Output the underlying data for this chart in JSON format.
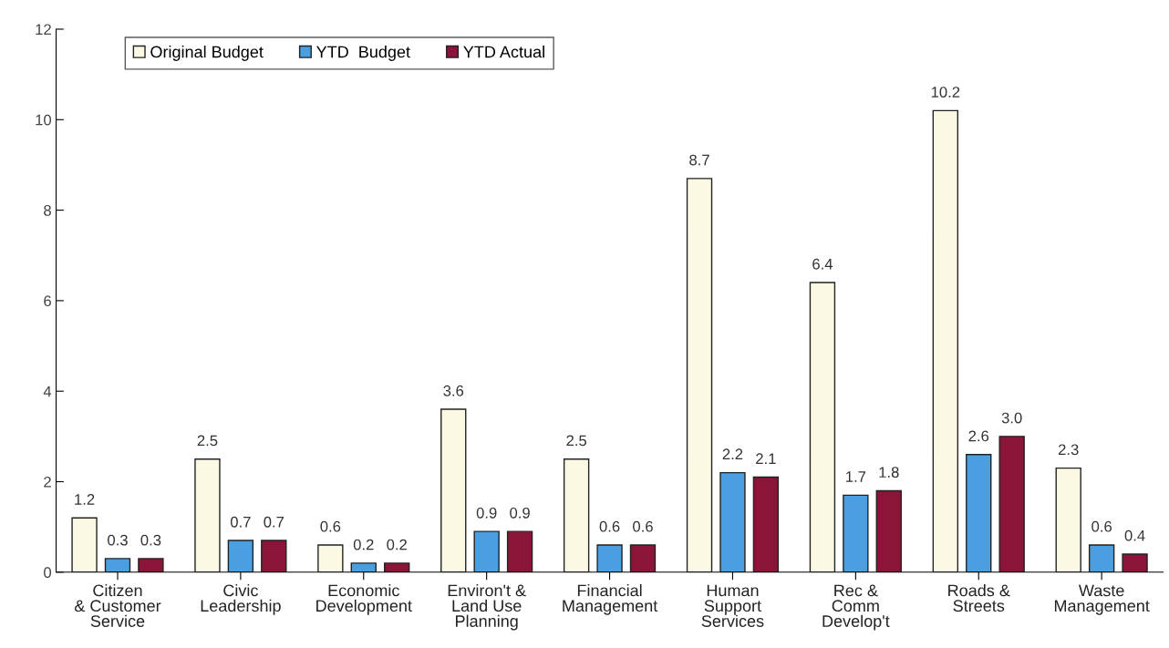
{
  "chart_data": {
    "type": "bar",
    "categories": [
      "Citizen\n& Customer\nService",
      "Civic\nLeadership",
      "Economic\nDevelopment",
      "Environ't &\nLand Use\nPlanning",
      "Financial\nManagement",
      "Human\nSupport\nServices",
      "Rec &\nComm\nDevelop't",
      "Roads &\nStreets",
      "Waste\nManagement"
    ],
    "series": [
      {
        "name": "Original Budget",
        "color": "#fbf8e4",
        "values": [
          1.2,
          2.5,
          0.6,
          3.6,
          2.5,
          8.7,
          6.4,
          10.2,
          2.3
        ],
        "value_labels": [
          "1.2",
          "2.5",
          "0.6",
          "3.6",
          "2.5",
          "8.7",
          "6.4",
          "10.2",
          "2.3"
        ]
      },
      {
        "name": "YTD  Budget",
        "color": "#4a9fe0",
        "values": [
          0.3,
          0.7,
          0.2,
          0.9,
          0.6,
          2.2,
          1.7,
          2.6,
          0.6
        ],
        "value_labels": [
          "0.3",
          "0.7",
          "0.2",
          "0.9",
          "0.6",
          "2.2",
          "1.7",
          "2.6",
          "0.6"
        ]
      },
      {
        "name": "YTD Actual",
        "color": "#8b1538",
        "values": [
          0.3,
          0.7,
          0.2,
          0.9,
          0.6,
          2.1,
          1.8,
          3.0,
          0.4
        ],
        "value_labels": [
          "0.3",
          "0.7",
          "0.2",
          "0.9",
          "0.6",
          "2.1",
          "1.8",
          "3.0",
          "0.4"
        ]
      }
    ],
    "ylim": [
      0,
      12
    ],
    "yticks": [
      0,
      2,
      4,
      6,
      8,
      10,
      12
    ],
    "grid": false,
    "legend": "top left"
  }
}
